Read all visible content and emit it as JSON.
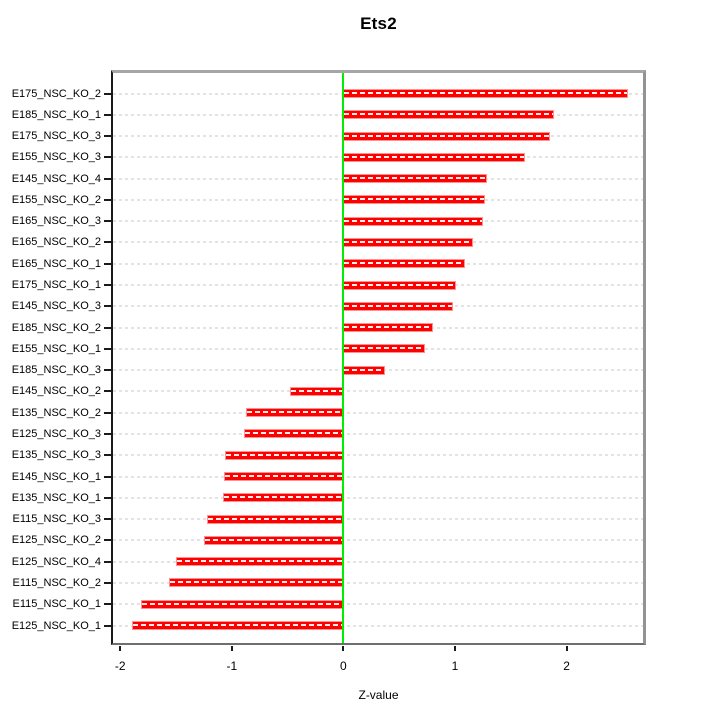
{
  "title": "Ets2",
  "chart_data": {
    "type": "bar",
    "orientation": "horizontal",
    "title": "Ets2",
    "xlabel": "Z-value",
    "ylabel": "",
    "xlim": [
      -2.07,
      2.72
    ],
    "x_ticks": [
      -2,
      -1,
      0,
      1,
      2
    ],
    "grid": "dashed light-gray line per category, full plot width",
    "legend": "none",
    "zero_reference_line": 0,
    "categories": [
      "E175_NSC_KO_2",
      "E185_NSC_KO_1",
      "E175_NSC_KO_3",
      "E155_NSC_KO_3",
      "E145_NSC_KO_4",
      "E155_NSC_KO_2",
      "E165_NSC_KO_3",
      "E165_NSC_KO_2",
      "E165_NSC_KO_1",
      "E175_NSC_KO_1",
      "E145_NSC_KO_3",
      "E185_NSC_KO_2",
      "E155_NSC_KO_1",
      "E185_NSC_KO_3",
      "E145_NSC_KO_2",
      "E135_NSC_KO_2",
      "E125_NSC_KO_3",
      "E135_NSC_KO_3",
      "E145_NSC_KO_1",
      "E135_NSC_KO_1",
      "E115_NSC_KO_3",
      "E125_NSC_KO_2",
      "E125_NSC_KO_4",
      "E115_NSC_KO_2",
      "E115_NSC_KO_1",
      "E125_NSC_KO_1"
    ],
    "values": [
      2.55,
      1.89,
      1.85,
      1.63,
      1.29,
      1.27,
      1.25,
      1.16,
      1.09,
      1.01,
      0.98,
      0.8,
      0.73,
      0.37,
      -0.48,
      -0.87,
      -0.89,
      -1.06,
      -1.07,
      -1.08,
      -1.22,
      -1.25,
      -1.5,
      -1.56,
      -1.81,
      -1.89
    ],
    "colors": {
      "bar_fill": "#ff0000",
      "bar_edge": "#ff9191",
      "bar_center_dash": "#ffffff",
      "zero_line": "#00ee00",
      "gridline": "#e3e3e3",
      "box_top": "#a6a6a6",
      "box_right": "#939393",
      "box_bottom": "#6e6e6e",
      "box_left": "#1a1a1a",
      "text": "#000000"
    }
  }
}
